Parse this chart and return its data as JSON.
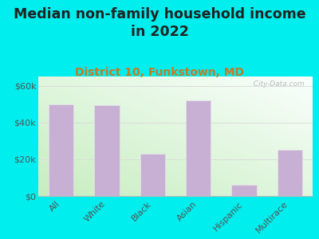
{
  "title": "Median non-family household income\nin 2022",
  "subtitle": "District 10, Funkstown, MD",
  "categories": [
    "All",
    "White",
    "Black",
    "Asian",
    "Hispanic",
    "Multirace"
  ],
  "values": [
    50000,
    49500,
    23000,
    52000,
    6000,
    25000
  ],
  "bar_color": "#c8afd4",
  "bar_edge_color": "#e8e0ee",
  "ylim": [
    0,
    65000
  ],
  "yticks": [
    0,
    20000,
    40000,
    60000
  ],
  "ytick_labels": [
    "$0",
    "$20k",
    "$40k",
    "$60k"
  ],
  "title_fontsize": 12.5,
  "subtitle_fontsize": 10,
  "tick_fontsize": 8,
  "background_color": "#00eeee",
  "watermark": "  City-Data.com",
  "title_color": "#222222",
  "subtitle_color": "#cc7722",
  "tick_color": "#555555",
  "axis_color": "#bbbbbb",
  "grid_color": "#dddddd"
}
